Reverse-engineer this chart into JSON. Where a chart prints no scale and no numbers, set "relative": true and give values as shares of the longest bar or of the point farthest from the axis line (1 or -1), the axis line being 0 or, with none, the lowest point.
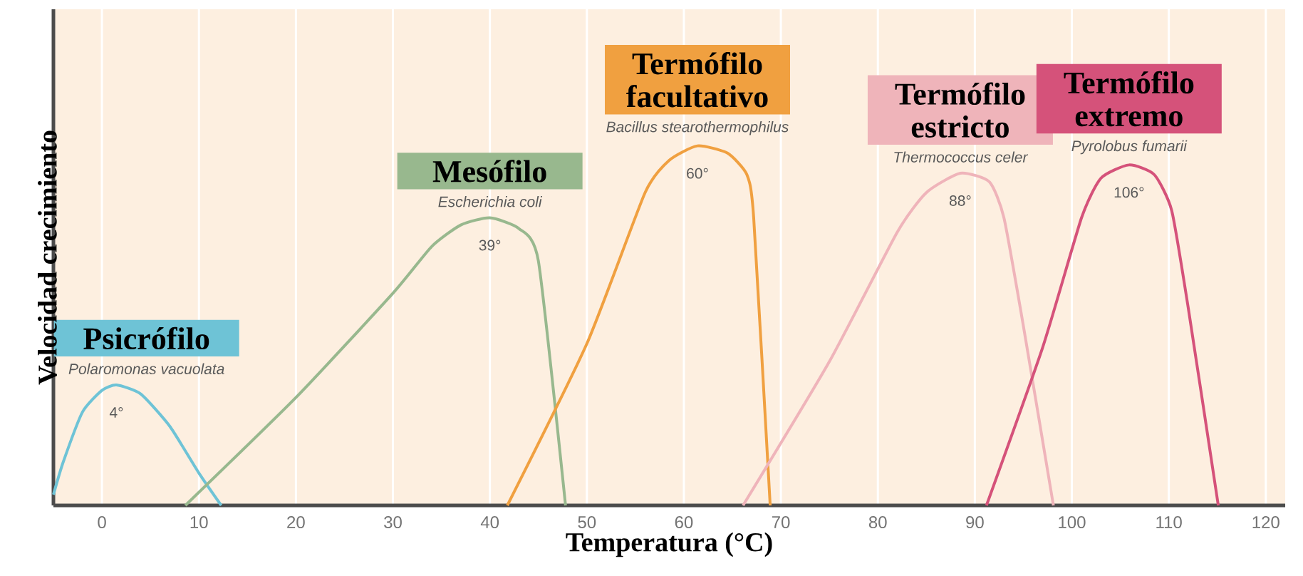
{
  "chart_data": {
    "type": "line",
    "relative": true,
    "xlabel": "Temperatura (°C)",
    "ylabel": "Velocidad crecimiento",
    "xlim": [
      -5,
      122
    ],
    "xticks": [
      0,
      10,
      20,
      30,
      40,
      50,
      60,
      70,
      80,
      90,
      100,
      110,
      120
    ],
    "grid": "x",
    "series": [
      {
        "name": "Psicrófilo",
        "color": "#6ec3d6",
        "x": [
          -5,
          -4,
          -2,
          0,
          1.5,
          4,
          7,
          10,
          12.3
        ],
        "values": [
          0.03,
          0.12,
          0.26,
          0.32,
          0.335,
          0.31,
          0.22,
          0.09,
          0
        ]
      },
      {
        "name": "Mesófilo",
        "color": "#98b88e",
        "x": [
          8.6,
          20,
          30,
          34,
          37,
          40,
          43,
          45,
          47.8
        ],
        "values": [
          0,
          0.3,
          0.59,
          0.72,
          0.78,
          0.8,
          0.77,
          0.68,
          0
        ]
      },
      {
        "name": "Termófilo facultativo",
        "color": "#f0a040",
        "x": [
          41.8,
          50,
          56,
          58.5,
          61.4,
          64.5,
          66.5,
          67.2,
          68.9
        ],
        "values": [
          0,
          0.45,
          0.87,
          0.96,
          1.0,
          0.98,
          0.92,
          0.8,
          0
        ]
      },
      {
        "name": "Termófilo estricto",
        "color": "#efb4ba",
        "x": [
          66.1,
          75,
          82,
          85,
          88.5,
          91.5,
          93,
          95,
          98.1
        ],
        "values": [
          0,
          0.4,
          0.76,
          0.87,
          0.924,
          0.9,
          0.8,
          0.5,
          0
        ]
      },
      {
        "name": "Termófilo extremo",
        "color": "#d5527a",
        "x": [
          91.2,
          97,
          101,
          103,
          105.9,
          108.5,
          110.3,
          112,
          115.1
        ],
        "values": [
          0,
          0.44,
          0.8,
          0.91,
          0.947,
          0.92,
          0.82,
          0.55,
          0
        ]
      }
    ],
    "annotations": [
      "Polaromonas vacuolata",
      "Escherichia coli",
      "Bacillus stearothermophilus",
      "Thermococcus celer",
      "Pyrolobus fumarii",
      "4°",
      "39°",
      "60°",
      "88°",
      "106°"
    ]
  }
}
